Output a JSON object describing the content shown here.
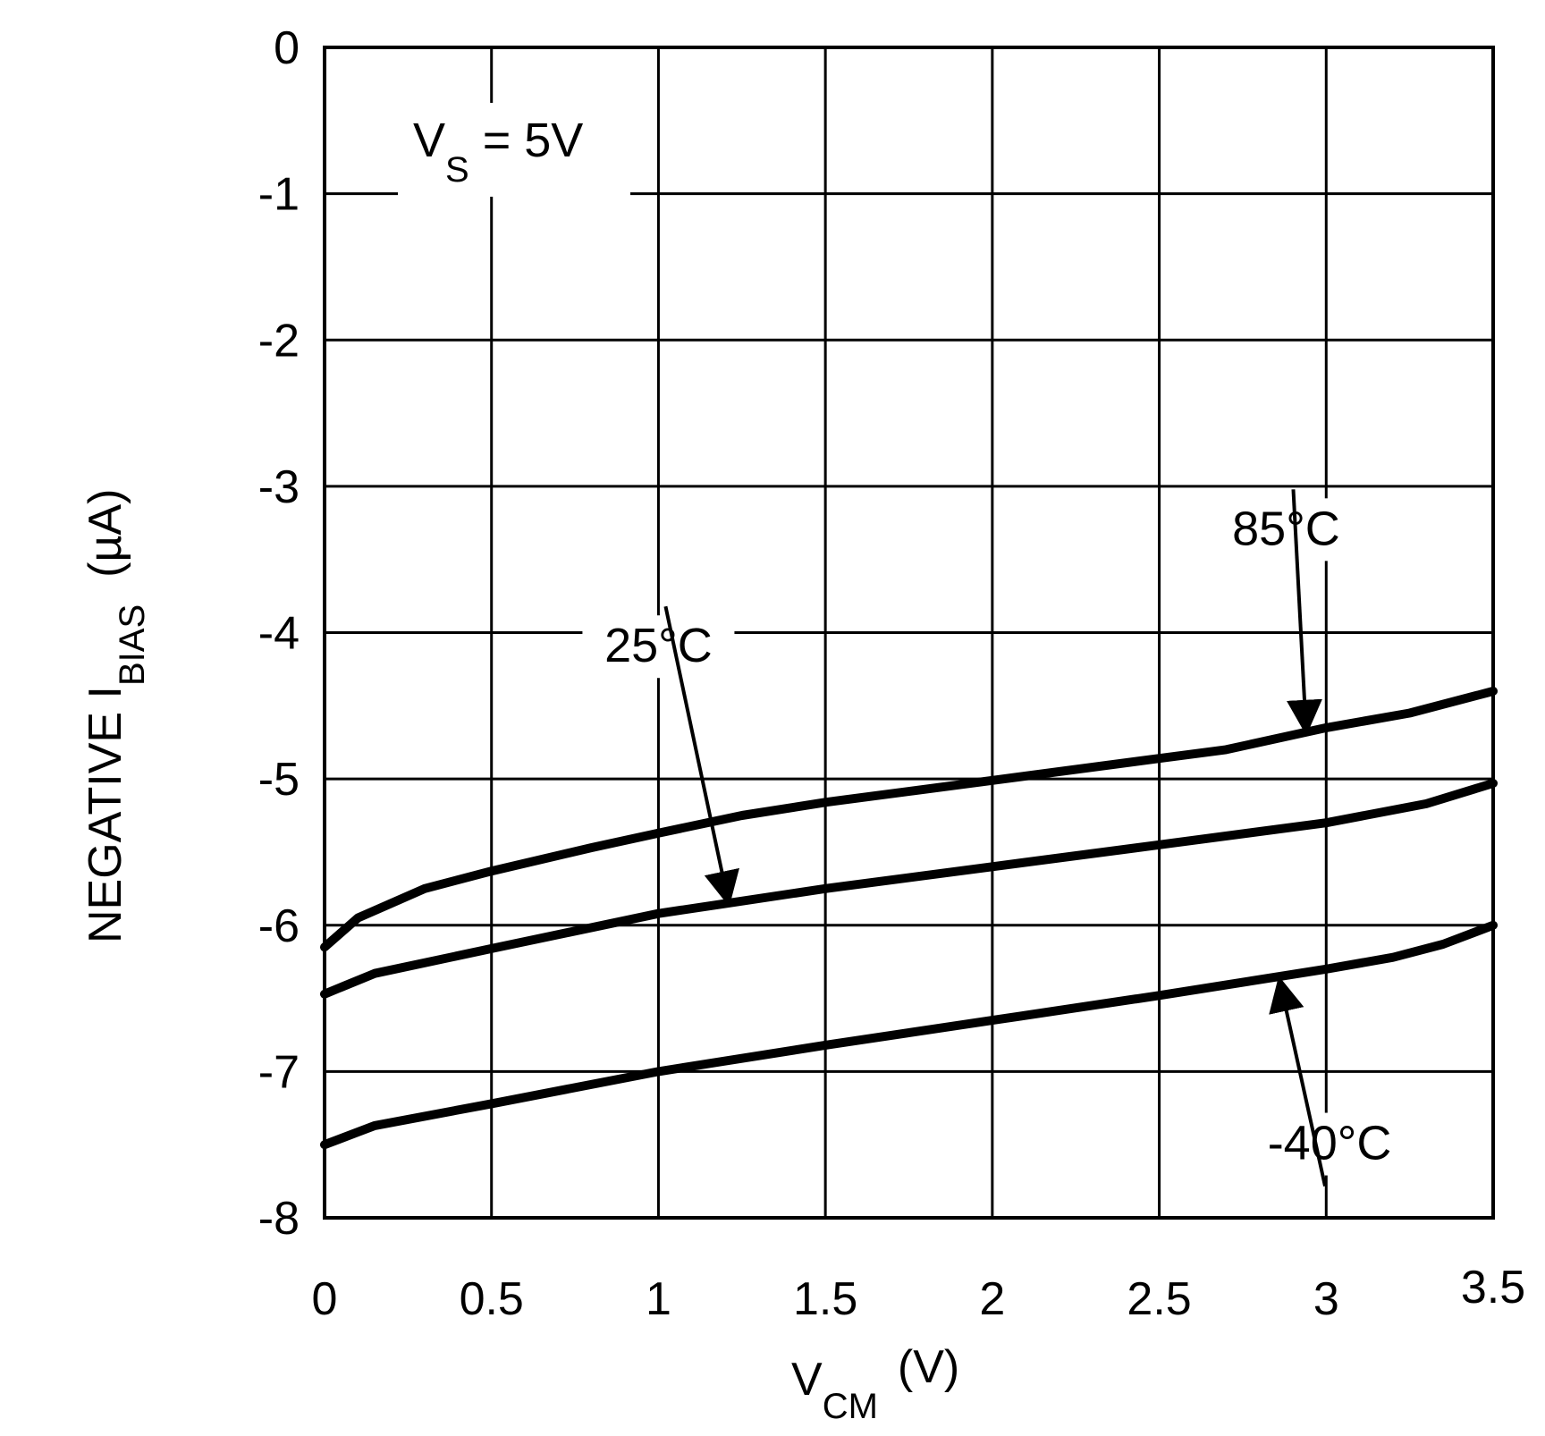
{
  "chart_data": {
    "type": "line",
    "title": "",
    "xlabel": {
      "main": "V",
      "sub": "CM",
      "unit": "(V)"
    },
    "ylabel": {
      "main": "NEGATIVE I",
      "sub": "BIAS",
      "unit": "(µA)"
    },
    "xlim": [
      0,
      3.5
    ],
    "ylim": [
      -8,
      0
    ],
    "grid": true,
    "x_ticks": [
      {
        "value": 0,
        "label": "0"
      },
      {
        "value": 0.5,
        "label": "0.5"
      },
      {
        "value": 1,
        "label": "1"
      },
      {
        "value": 1.5,
        "label": "1.5"
      },
      {
        "value": 2,
        "label": "2"
      },
      {
        "value": 2.5,
        "label": "2.5"
      },
      {
        "value": 3,
        "label": "3"
      },
      {
        "value": 3.5,
        "label": "3.5"
      }
    ],
    "y_ticks": [
      {
        "value": 0,
        "label": "0"
      },
      {
        "value": -1,
        "label": "-1"
      },
      {
        "value": -2,
        "label": "-2"
      },
      {
        "value": -3,
        "label": "-3"
      },
      {
        "value": -4,
        "label": "-4"
      },
      {
        "value": -5,
        "label": "-5"
      },
      {
        "value": -6,
        "label": "-6"
      },
      {
        "value": -7,
        "label": "-7"
      },
      {
        "value": -8,
        "label": "-8"
      }
    ],
    "annotation": {
      "main": "V",
      "sub": "S",
      "rest": " = 5V"
    },
    "series": [
      {
        "name": "85°C",
        "x": [
          0,
          0.1,
          0.3,
          0.5,
          0.8,
          1.0,
          1.25,
          1.5,
          2.0,
          2.5,
          2.7,
          3.0,
          3.25,
          3.5
        ],
        "values": [
          -6.15,
          -5.95,
          -5.75,
          -5.63,
          -5.47,
          -5.37,
          -5.25,
          -5.16,
          -5.01,
          -4.86,
          -4.8,
          -4.65,
          -4.55,
          -4.4
        ],
        "label_anchor": {
          "x": 2.88,
          "y": -3.4
        },
        "arrow_to": {
          "x": 2.94,
          "y": -4.68
        }
      },
      {
        "name": "25°C",
        "x": [
          0,
          0.15,
          0.5,
          1.0,
          1.5,
          2.0,
          2.5,
          3.0,
          3.3,
          3.5
        ],
        "values": [
          -6.47,
          -6.33,
          -6.16,
          -5.92,
          -5.75,
          -5.6,
          -5.45,
          -5.3,
          -5.17,
          -5.03
        ],
        "label_anchor": {
          "x": 1.0,
          "y": -4.2
        },
        "arrow_to": {
          "x": 1.21,
          "y": -5.85
        }
      },
      {
        "name": "-40°C",
        "x": [
          0,
          0.15,
          0.5,
          1.0,
          1.5,
          2.0,
          2.5,
          3.0,
          3.2,
          3.35,
          3.5
        ],
        "values": [
          -7.5,
          -7.37,
          -7.22,
          -7.0,
          -6.82,
          -6.65,
          -6.48,
          -6.3,
          -6.22,
          -6.13,
          -6.0
        ],
        "label_anchor": {
          "x": 3.01,
          "y": -7.6
        },
        "arrow_to": {
          "x": 2.86,
          "y": -6.37
        }
      }
    ]
  }
}
